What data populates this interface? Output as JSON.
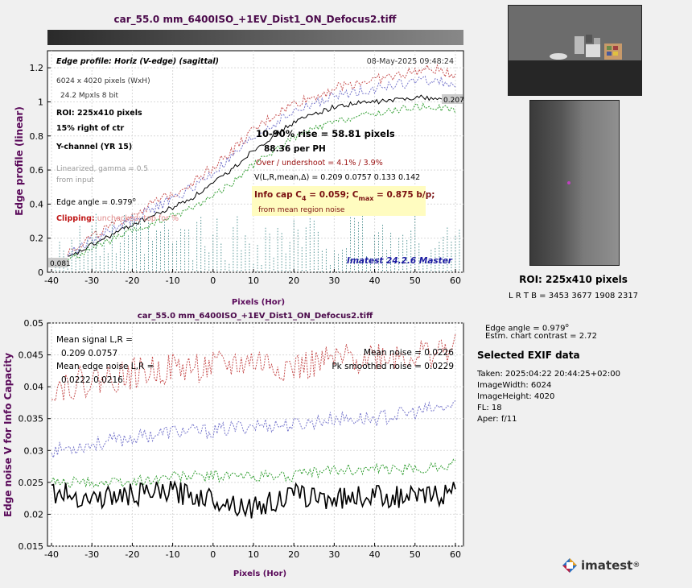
{
  "colors": {
    "title": "#4b0a4b",
    "ylabel": "#5a0a5a",
    "red": "#c75050",
    "blue": "#7777cc",
    "green": "#2e9d2e",
    "teal": "#2e7d7d",
    "black": "#000000"
  },
  "chart_data": [
    {
      "type": "line",
      "title": "car_55.0 mm_6400ISO_+1EV_Dist1_ON_Defocus2.tiff",
      "xlabel": "Pixels (Hor)",
      "ylabel": "Edge profile (linear)",
      "xlim": [
        -41,
        62
      ],
      "ylim": [
        0,
        1.3
      ],
      "xticks": [
        "-40",
        "-30",
        "-20",
        "-10",
        "0",
        "10",
        "20",
        "30",
        "40",
        "50",
        "60"
      ],
      "yticks": [
        "0",
        "0.2",
        "0.4",
        "0.6",
        "0.8",
        "1",
        "1.2"
      ],
      "grid": true,
      "series": [
        {
          "color": "black",
          "x": [
            -36,
            -30,
            -25,
            -20,
            -15,
            -10,
            -5,
            0,
            5,
            10,
            15,
            20,
            25,
            30,
            35,
            40,
            45,
            50,
            55,
            60
          ],
          "y": [
            0.081,
            0.16,
            0.22,
            0.28,
            0.33,
            0.38,
            0.44,
            0.52,
            0.61,
            0.72,
            0.8,
            0.88,
            0.93,
            0.97,
            0.99,
            1.0,
            1.01,
            1.03,
            1.02,
            1.0
          ]
        },
        {
          "color": "red",
          "x": [
            -36,
            -30,
            -25,
            -20,
            -15,
            -10,
            -5,
            0,
            5,
            10,
            15,
            20,
            25,
            30,
            35,
            40,
            45,
            50,
            55,
            60
          ],
          "y": [
            0.12,
            0.21,
            0.27,
            0.34,
            0.4,
            0.46,
            0.53,
            0.62,
            0.72,
            0.83,
            0.92,
            0.99,
            1.03,
            1.08,
            1.11,
            1.13,
            1.15,
            1.18,
            1.19,
            1.16
          ]
        },
        {
          "color": "blue",
          "x": [
            -36,
            -30,
            -25,
            -20,
            -15,
            -10,
            -5,
            0,
            5,
            10,
            15,
            20,
            25,
            30,
            35,
            40,
            45,
            50,
            55,
            60
          ],
          "y": [
            0.1,
            0.19,
            0.25,
            0.31,
            0.37,
            0.43,
            0.5,
            0.58,
            0.68,
            0.79,
            0.87,
            0.94,
            0.99,
            1.03,
            1.06,
            1.08,
            1.1,
            1.12,
            1.13,
            1.1
          ]
        },
        {
          "color": "green",
          "x": [
            -36,
            -30,
            -25,
            -20,
            -15,
            -10,
            -5,
            0,
            5,
            10,
            15,
            20,
            25,
            30,
            35,
            40,
            45,
            50,
            55,
            60
          ],
          "y": [
            0.07,
            0.14,
            0.19,
            0.24,
            0.28,
            0.33,
            0.38,
            0.45,
            0.53,
            0.63,
            0.71,
            0.79,
            0.84,
            0.88,
            0.91,
            0.93,
            0.95,
            0.97,
            0.97,
            0.95
          ]
        }
      ],
      "endpoint_labels": {
        "left": "0.081",
        "right": "0.207"
      },
      "annotations": {
        "profile_title": "Edge profile: Horiz (V-edge) (sagittal)",
        "date": "08-May-2025 09:48:24",
        "pixels": "6024 x 4020 pixels (WxH)",
        "mpxls": "24.2 Mpxls   8 bit",
        "roi": "ROI:  225x410 pixels",
        "right_of_ctr": "15% right of ctr",
        "channel": "Y-channel  (YR 15)",
        "linearized": "Linearized, gamma = 0.5",
        "from_input": "from input",
        "edge_angle_prefix": "Edge angle = 0.979",
        "edge_angle_sup": "o",
        "clipping_label": "Clipping:",
        "clipping_text": "unchecked; top for %",
        "rise": "10-90% rise = 58.81 pixels",
        "per_ph": "88.36 per PH",
        "overshoot": "Over / undershoot =  4.1% /  3.9%",
        "vstats": "V(L,R,mean,Δ) = 0.209  0.0757  0.133  0.142",
        "infocap_a": "Info cap C",
        "infocap_b": "4",
        "infocap_c": " = 0.059;  C",
        "infocap_d": "max",
        "infocap_e": " = 0.875 b/p;",
        "infocap_sub": "from mean region noise",
        "master": "Imatest 24.2.6 Master"
      }
    },
    {
      "type": "line",
      "title": "car_55.0 mm_6400ISO_+1EV_Dist1_ON_Defocus2.tiff",
      "xlabel": "Pixels (Hor)",
      "ylabel": "Edge noise V for Info Capacity",
      "xlim": [
        -41,
        62
      ],
      "ylim": [
        0.015,
        0.05
      ],
      "xticks": [
        "-40",
        "-30",
        "-20",
        "-10",
        "0",
        "10",
        "20",
        "30",
        "40",
        "50",
        "60"
      ],
      "yticks": [
        "0.015",
        "0.02",
        "0.025",
        "0.03",
        "0.035",
        "0.04",
        "0.045",
        "0.05"
      ],
      "grid": true,
      "series": [
        {
          "color": "red",
          "x": [
            -40,
            -30,
            -20,
            -10,
            0,
            10,
            20,
            30,
            40,
            50,
            60
          ],
          "y": [
            0.04,
            0.041,
            0.042,
            0.043,
            0.043,
            0.044,
            0.043,
            0.044,
            0.045,
            0.045,
            0.046
          ]
        },
        {
          "color": "blue",
          "x": [
            -40,
            -30,
            -20,
            -10,
            0,
            10,
            20,
            30,
            40,
            50,
            60
          ],
          "y": [
            0.03,
            0.031,
            0.032,
            0.033,
            0.033,
            0.034,
            0.034,
            0.035,
            0.035,
            0.036,
            0.037
          ]
        },
        {
          "color": "green",
          "x": [
            -40,
            -30,
            -20,
            -10,
            0,
            10,
            20,
            30,
            40,
            50,
            60
          ],
          "y": [
            0.025,
            0.025,
            0.025,
            0.026,
            0.026,
            0.026,
            0.026,
            0.027,
            0.027,
            0.027,
            0.028
          ]
        },
        {
          "color": "black",
          "x": [
            -40,
            -30,
            -20,
            -10,
            0,
            10,
            20,
            30,
            40,
            50,
            60
          ],
          "y": [
            0.0235,
            0.0225,
            0.023,
            0.0235,
            0.0225,
            0.021,
            0.023,
            0.0225,
            0.023,
            0.0225,
            0.0235
          ]
        }
      ],
      "annotations": {
        "mean_signal": "Mean signal L,R =",
        "mean_signal_v": "0.209  0.0757",
        "mean_edge_noise": "Mean edge noise L,R =",
        "mean_edge_noise_v": "0.0222  0.0216",
        "mean_noise": "Mean noise = 0.0226",
        "pk_noise": "Pk smoothed noise = 0.0229"
      }
    }
  ],
  "roi_caption": "ROI:  225x410 pixels",
  "roi_lrtb": "L R  T B = 3453 3677  1908 2317",
  "side": {
    "edge_angle_prefix": "Edge angle = 0.979",
    "edge_angle_sup": "o",
    "contrast": "Estm. chart contrast = 2.72",
    "exif_title": "Selected EXIF data",
    "exif": [
      "Taken: 2025:04:22 20:44:25+02:00",
      "ImageWidth:  6024",
      "ImageHeight:  4020",
      "FL:   18",
      "Aper:  f/11"
    ]
  },
  "logo": {
    "text": "imatest",
    "reg": "®"
  }
}
